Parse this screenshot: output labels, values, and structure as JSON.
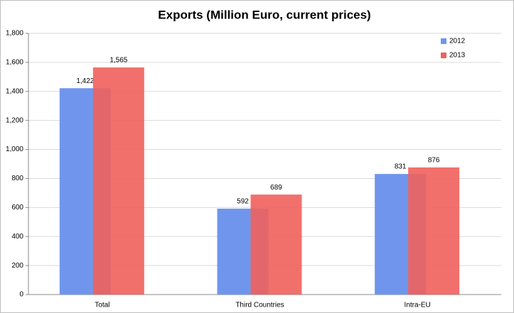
{
  "chart_data": {
    "type": "bar",
    "title": "Exports (Million Euro, current prices)",
    "categories": [
      "Total",
      "Third Countries",
      "Intra-EU"
    ],
    "series": [
      {
        "name": "2012",
        "color": "#6f96ec",
        "values": [
          1422,
          592,
          831
        ],
        "value_labels": [
          "1,422",
          "592",
          "831"
        ]
      },
      {
        "name": "2013",
        "color": "#f0605c",
        "values": [
          1565,
          689,
          876
        ],
        "value_labels": [
          "1,565",
          "689",
          "876"
        ]
      }
    ],
    "ylim": [
      0,
      1800
    ],
    "yticks": [
      0,
      200,
      400,
      600,
      800,
      {
        "value": 1000,
        "label": "1,000"
      },
      {
        "value": 1200,
        "label": "1,200"
      },
      {
        "value": 1400,
        "label": "1,400"
      },
      {
        "value": 1600,
        "label": "1,600"
      },
      {
        "value": 1800,
        "label": "1,800"
      }
    ],
    "grid": true,
    "legend": "top-right"
  }
}
